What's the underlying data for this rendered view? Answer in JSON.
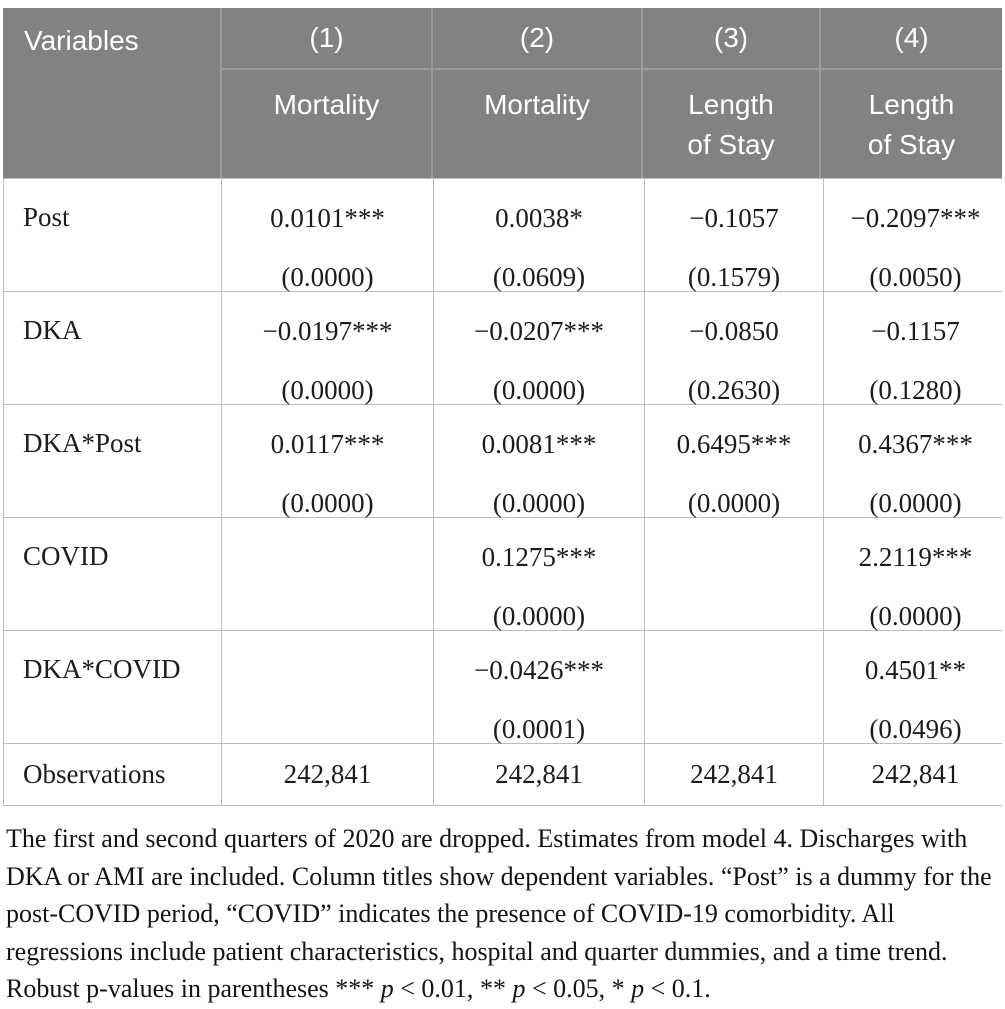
{
  "table": {
    "header": {
      "variables_label": "Variables",
      "columns": [
        {
          "number": "(1)",
          "dep_var": "Mortality"
        },
        {
          "number": "(2)",
          "dep_var": "Mortality"
        },
        {
          "number": "(3)",
          "dep_var": "Length\nof Stay"
        },
        {
          "number": "(4)",
          "dep_var": "Length\nof Stay"
        }
      ]
    },
    "rows": [
      {
        "label": "Post",
        "cells": [
          {
            "coef": "0.0101***",
            "p": "(0.0000)"
          },
          {
            "coef": "0.0038*",
            "p": "(0.0609)"
          },
          {
            "coef": "−0.1057",
            "p": "(0.1579)"
          },
          {
            "coef": "−0.2097***",
            "p": "(0.0050)"
          }
        ]
      },
      {
        "label": "DKA",
        "cells": [
          {
            "coef": "−0.0197***",
            "p": "(0.0000)"
          },
          {
            "coef": "−0.0207***",
            "p": "(0.0000)"
          },
          {
            "coef": "−0.0850",
            "p": "(0.2630)"
          },
          {
            "coef": "−0.1157",
            "p": "(0.1280)"
          }
        ]
      },
      {
        "label": "DKA*Post",
        "cells": [
          {
            "coef": "0.0117***",
            "p": "(0.0000)"
          },
          {
            "coef": "0.0081***",
            "p": "(0.0000)"
          },
          {
            "coef": "0.6495***",
            "p": "(0.0000)"
          },
          {
            "coef": "0.4367***",
            "p": "(0.0000)"
          }
        ]
      },
      {
        "label": "COVID",
        "cells": [
          {
            "coef": "",
            "p": ""
          },
          {
            "coef": "0.1275***",
            "p": "(0.0000)"
          },
          {
            "coef": "",
            "p": ""
          },
          {
            "coef": "2.2119***",
            "p": "(0.0000)"
          }
        ]
      },
      {
        "label": "DKA*COVID",
        "cells": [
          {
            "coef": "",
            "p": ""
          },
          {
            "coef": "−0.0426***",
            "p": "(0.0001)"
          },
          {
            "coef": "",
            "p": ""
          },
          {
            "coef": "0.4501**",
            "p": "(0.0496)"
          }
        ]
      }
    ],
    "summary_row": {
      "label": "Observations",
      "values": [
        "242,841",
        "242,841",
        "242,841",
        "242,841"
      ]
    }
  },
  "footnote": {
    "text": "The first and second quarters of 2020 are dropped. Estimates from model 4. Discharges with DKA or AMI are included. Column titles show dependent variables. “Post” is a dummy for the post-COVID period, “COVID” indicates the presence of COVID-19 comorbidity. All regressions include patient characteristics, hospital and quarter dummies, and a time trend. Robust p-values in parentheses ",
    "sig": [
      {
        "stars": "*** ",
        "p": "p",
        "rest": " < 0.01, "
      },
      {
        "stars": "** ",
        "p": "p",
        "rest": " < 0.05, "
      },
      {
        "stars": "* ",
        "p": "p",
        "rest": " < 0.1."
      }
    ]
  },
  "colors": {
    "header_bg": "#828282",
    "header_divider": "#9c9c9c",
    "header_text": "#ffffff",
    "grid_line": "#bdbdbd",
    "body_text": "#1c1c1c",
    "background": "#ffffff"
  }
}
